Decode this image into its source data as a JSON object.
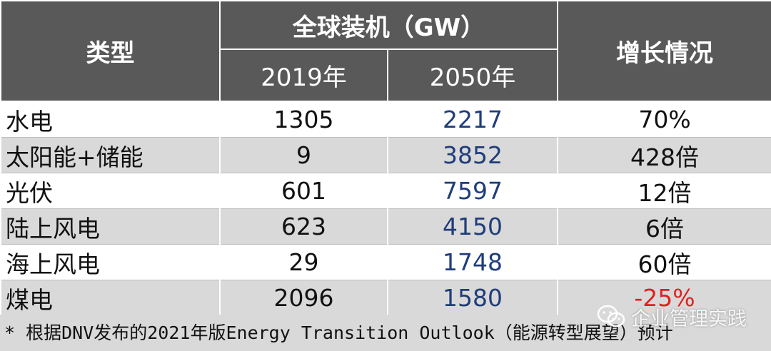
{
  "table": {
    "header": {
      "type_label": "类型",
      "installed_label": "全球装机（GW）",
      "growth_label": "增长情况",
      "year1_label": "2019年",
      "year2_label": "2050年"
    },
    "rows": [
      {
        "type": "水电",
        "y2019": "1305",
        "y2050": "2217",
        "growth": "70%"
      },
      {
        "type": "太阳能+储能",
        "y2019": "9",
        "y2050": "3852",
        "growth": "428倍"
      },
      {
        "type": "光伏",
        "y2019": "601",
        "y2050": "7597",
        "growth": "12倍"
      },
      {
        "type": "陆上风电",
        "y2019": "623",
        "y2050": "4150",
        "growth": "6倍"
      },
      {
        "type": "海上风电",
        "y2019": "29",
        "y2050": "1748",
        "growth": "60倍"
      },
      {
        "type": "煤电",
        "y2019": "2096",
        "y2050": "1580",
        "growth": "-25%"
      }
    ]
  },
  "footnote": "*  根据DNV发布的2021年版Energy  Transition  Outlook（能源转型展望）预计",
  "watermark": {
    "text": "企业管理实践",
    "icon": "wechat-icon"
  },
  "colors": {
    "header_bg": "#595959",
    "stripe": "#d9d9d9",
    "value_2050": "#1f3d7a",
    "negative": "#e02020"
  }
}
